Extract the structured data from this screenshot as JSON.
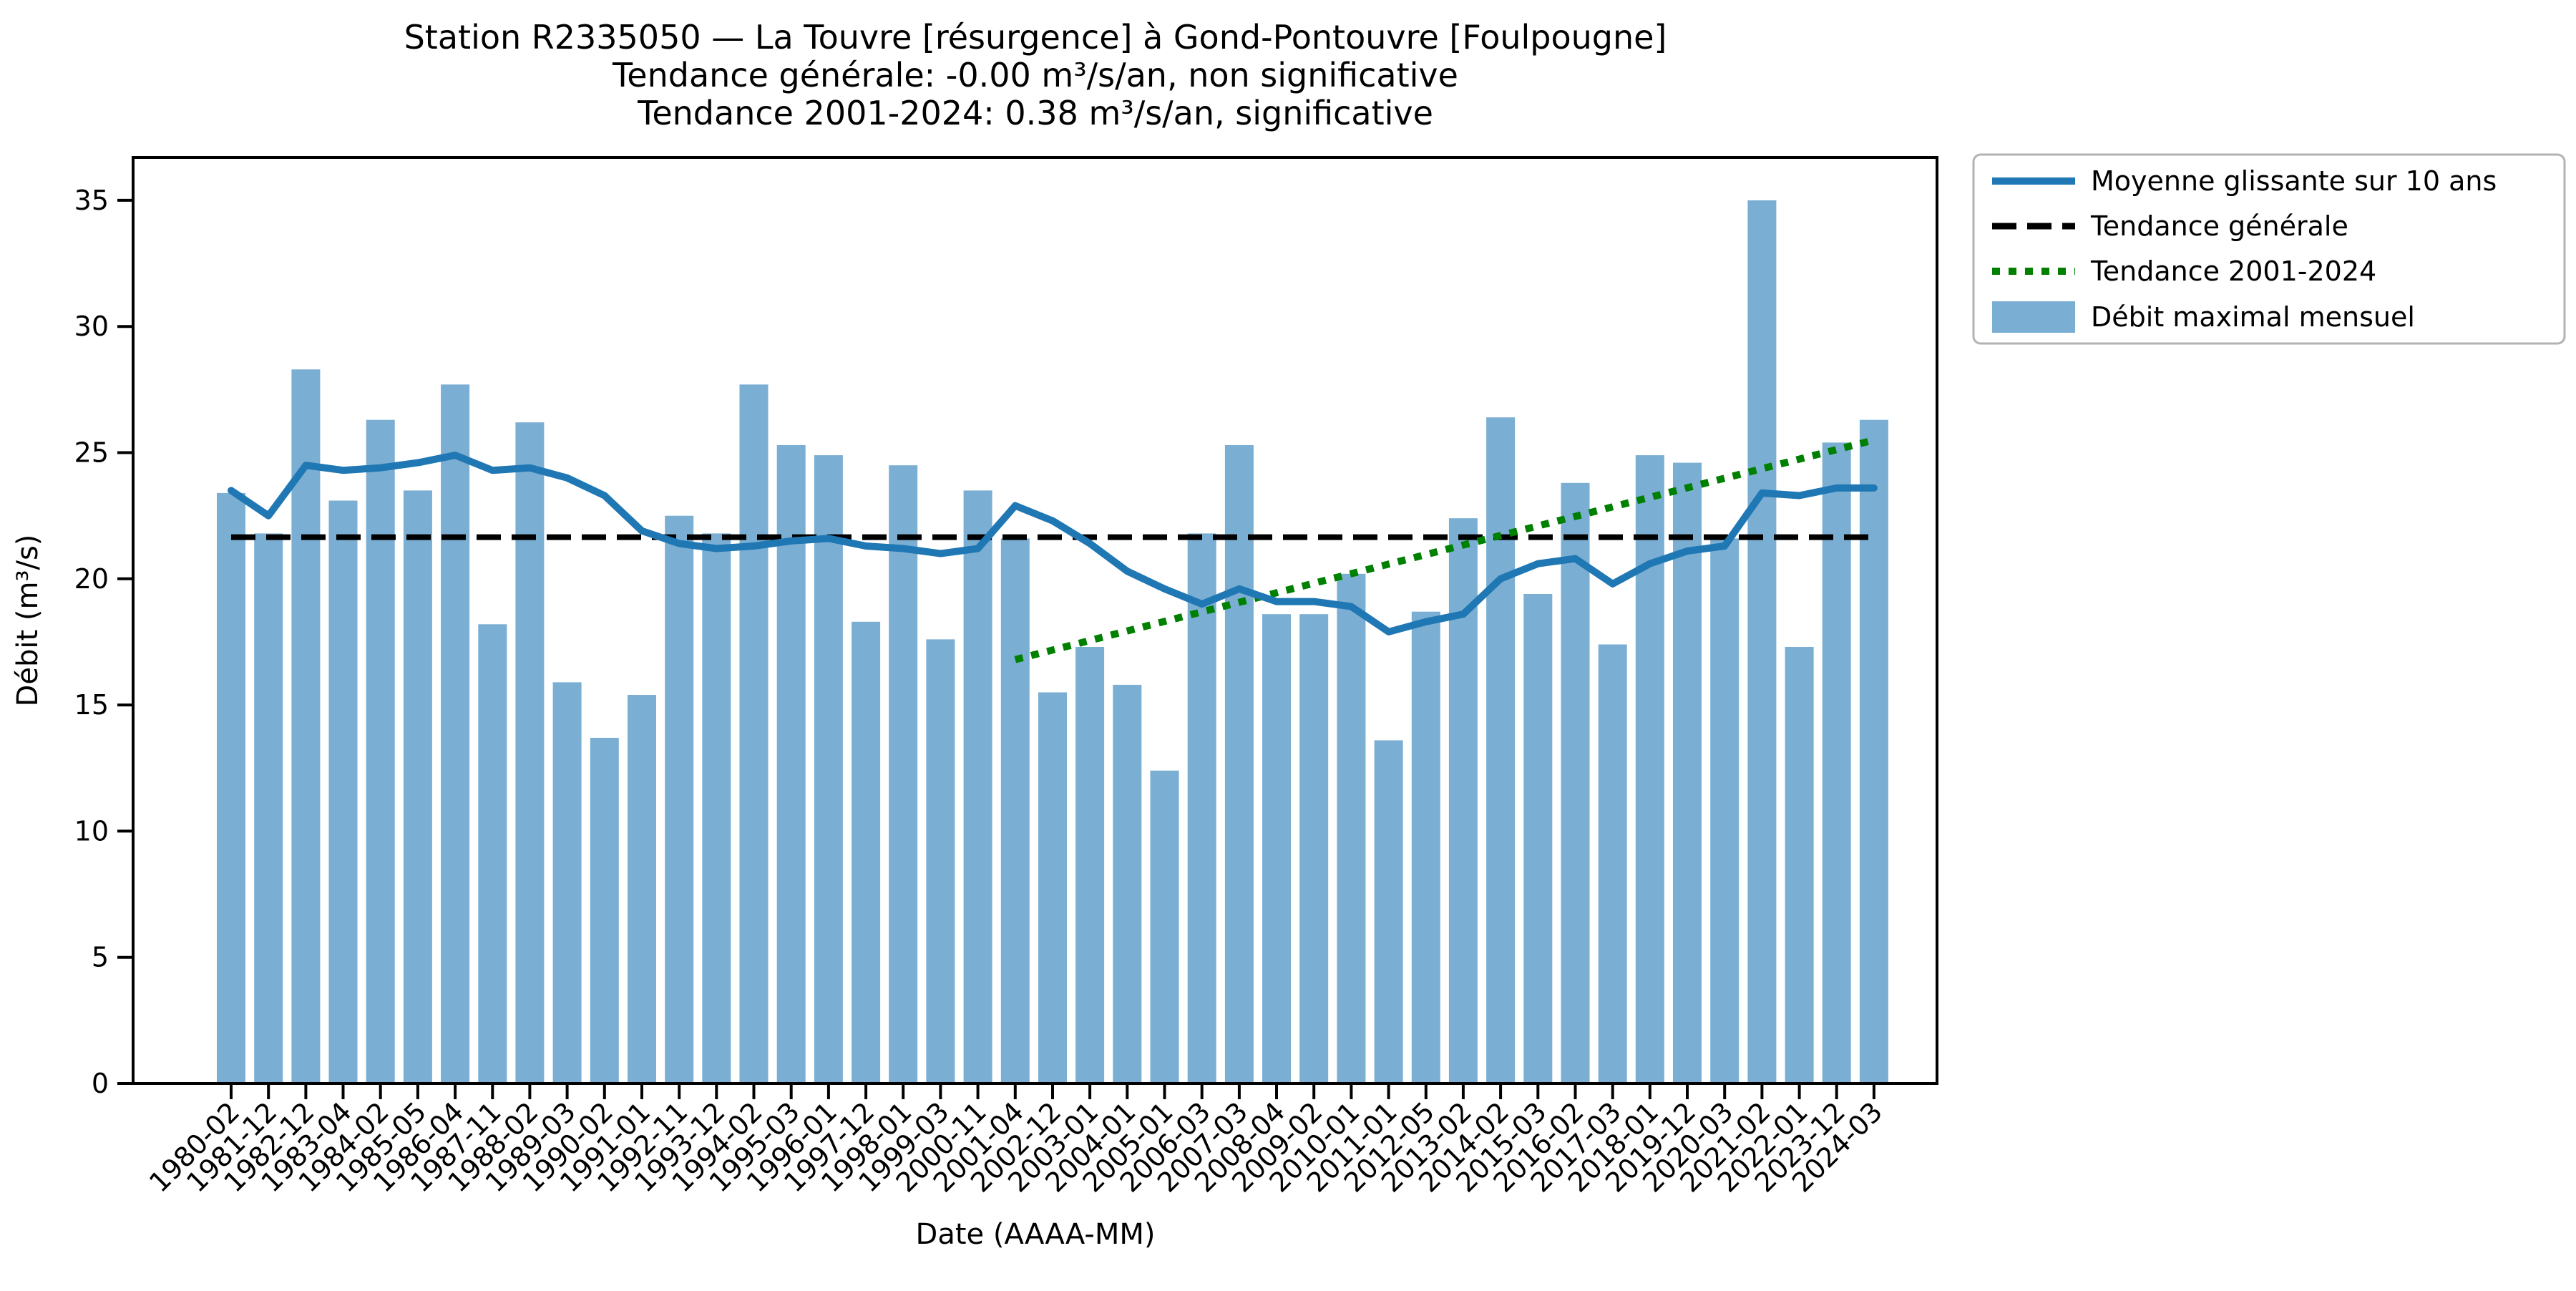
{
  "title": {
    "line1": "Station R2335050 — La Touvre [résurgence] à Gond-Pontouvre [Foulpougne]",
    "line2": "Tendance générale: -0.00 m³/s/an, non significative",
    "line3": "Tendance 2001-2024: 0.38 m³/s/an, significative"
  },
  "axes": {
    "xlabel": "Date (AAAA-MM)",
    "ylabel": "Débit (m³/s)",
    "yticks": [
      0,
      5,
      10,
      15,
      20,
      25,
      30,
      35
    ]
  },
  "legend": {
    "items": [
      {
        "label": "Moyenne glissante sur 10 ans",
        "type": "line",
        "color": "#1f77b4"
      },
      {
        "label": "Tendance générale",
        "type": "dashed",
        "color": "#000000"
      },
      {
        "label": "Tendance 2001-2024",
        "type": "dotted",
        "color": "#008000"
      },
      {
        "label": "Débit maximal mensuel",
        "type": "patch",
        "color": "#7aaed3"
      }
    ]
  },
  "chart_data": {
    "type": "bar",
    "title": "Station R2335050 — La Touvre [résurgence] à Gond-Pontouvre [Foulpougne]",
    "subtitle1": "Tendance générale: -0.00 m³/s/an, non significative",
    "subtitle2": "Tendance 2001-2024: 0.38 m³/s/an, significative",
    "xlabel": "Date (AAAA-MM)",
    "ylabel": "Débit (m³/s)",
    "ylim": [
      0,
      36.7
    ],
    "grid": false,
    "legend_position": "outside-upper-right",
    "categories": [
      "1980-02",
      "1981-12",
      "1982-12",
      "1983-04",
      "1984-02",
      "1985-05",
      "1986-04",
      "1987-11",
      "1988-02",
      "1989-03",
      "1990-02",
      "1991-01",
      "1992-11",
      "1993-12",
      "1994-02",
      "1995-03",
      "1996-01",
      "1997-12",
      "1998-01",
      "1999-03",
      "2000-11",
      "2001-04",
      "2002-12",
      "2003-01",
      "2004-01",
      "2005-01",
      "2006-03",
      "2007-03",
      "2008-04",
      "2009-02",
      "2010-01",
      "2011-01",
      "2012-05",
      "2013-02",
      "2014-02",
      "2015-03",
      "2016-02",
      "2017-03",
      "2018-01",
      "2019-12",
      "2020-03",
      "2021-02",
      "2022-01",
      "2023-12",
      "2024-03"
    ],
    "series": [
      {
        "name": "Débit maximal mensuel",
        "type": "bar",
        "color": "#7aaed3",
        "values": [
          23.4,
          21.8,
          28.3,
          23.1,
          26.3,
          23.5,
          27.7,
          18.2,
          26.2,
          15.9,
          13.7,
          15.4,
          22.5,
          21.8,
          27.7,
          25.3,
          24.9,
          18.3,
          24.5,
          17.6,
          23.5,
          21.6,
          15.5,
          17.3,
          15.8,
          12.4,
          21.8,
          25.3,
          18.6,
          18.6,
          20.2,
          13.6,
          18.7,
          22.4,
          26.4,
          19.4,
          23.8,
          17.4,
          24.9,
          24.6,
          21.6,
          35.0,
          17.3,
          25.4,
          26.3
        ]
      },
      {
        "name": "Moyenne glissante sur 10 ans",
        "type": "line",
        "color": "#1f77b4",
        "values": [
          23.5,
          22.5,
          24.5,
          24.3,
          24.4,
          24.6,
          24.9,
          24.3,
          24.4,
          24.0,
          23.3,
          21.9,
          21.4,
          21.2,
          21.3,
          21.5,
          21.6,
          21.3,
          21.2,
          21.0,
          21.2,
          22.9,
          22.3,
          21.4,
          20.3,
          19.6,
          19.0,
          19.6,
          19.1,
          19.1,
          18.9,
          17.9,
          18.3,
          18.6,
          20.0,
          20.6,
          20.8,
          19.8,
          20.6,
          21.1,
          21.3,
          23.4,
          23.3,
          23.6,
          23.6
        ]
      },
      {
        "name": "Tendance générale",
        "type": "trend-dashed",
        "color": "#000000",
        "x": [
          "1980-02",
          "2024-03"
        ],
        "y": [
          21.65,
          21.65
        ]
      },
      {
        "name": "Tendance 2001-2024",
        "type": "trend-dotted",
        "color": "#008000",
        "x": [
          "2001-04",
          "2024-03"
        ],
        "y": [
          16.8,
          25.5
        ]
      }
    ]
  }
}
